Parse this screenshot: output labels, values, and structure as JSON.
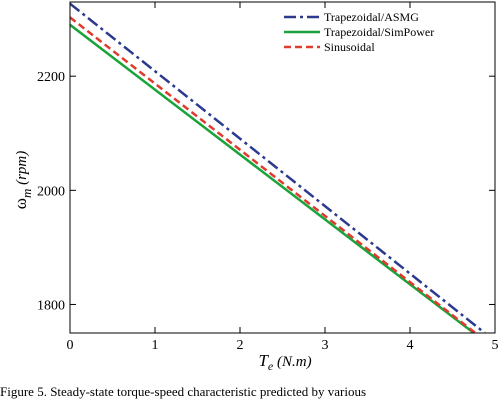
{
  "chart_data": {
    "type": "line",
    "title": "",
    "xlabel": {
      "main": "T",
      "sub": "e",
      "unit": " (N.m)"
    },
    "ylabel": {
      "main": "ω",
      "sub": "m",
      "unit": " (rpm)"
    },
    "xlim": [
      0,
      5
    ],
    "ylim": [
      1750,
      2330
    ],
    "xticks": [
      0,
      1,
      2,
      3,
      4,
      5
    ],
    "xtick_labels": [
      "0",
      "1",
      "2",
      "3",
      "4",
      "5"
    ],
    "yticks": [
      1800,
      2000,
      2200
    ],
    "ytick_labels": [
      "1800",
      "2000",
      "2200"
    ],
    "grid": false,
    "legend_position": "top-right",
    "series": [
      {
        "name": "Trapezoidal/ASMG",
        "color": "#2b3a8f",
        "dash": "dashdot",
        "x": [
          0,
          4.88
        ],
        "y": [
          2327,
          1750
        ]
      },
      {
        "name": "Trapezoidal/SimPower",
        "color": "#1aa33a",
        "dash": "solid",
        "x": [
          0,
          4.75
        ],
        "y": [
          2290,
          1750
        ]
      },
      {
        "name": "Sinusoidal",
        "color": "#e03a2f",
        "dash": "dashed",
        "x": [
          0,
          4.77
        ],
        "y": [
          2303,
          1750
        ]
      }
    ]
  },
  "caption": "Figure 5.   Steady-state torque-speed characteristic predicted by various"
}
